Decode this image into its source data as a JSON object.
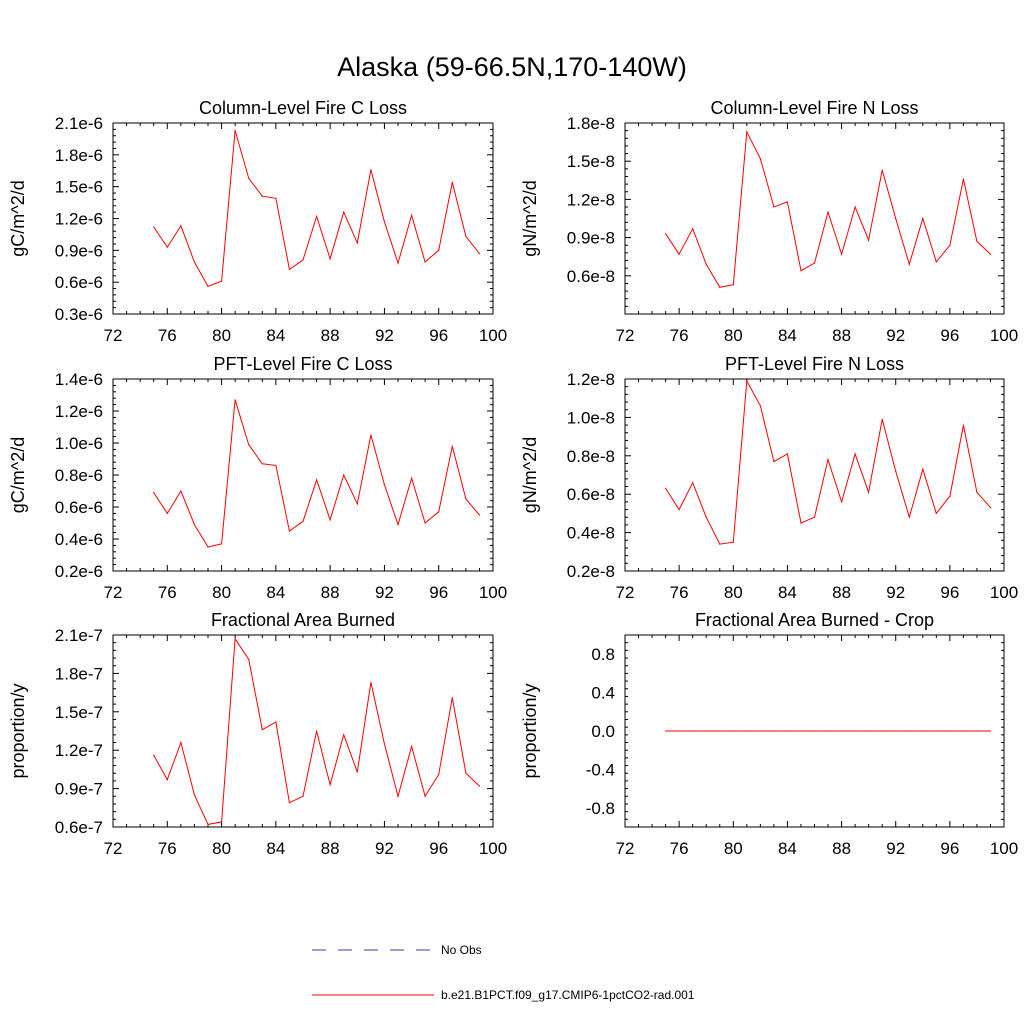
{
  "figure": {
    "title": "Alaska (59-66.5N,170-140W)"
  },
  "legend": {
    "items": [
      {
        "label": "No Obs",
        "color": "#3b3bb3",
        "style": "dashed"
      },
      {
        "label": "b.e21.B1PCT.f09_g17.CMIP6-1pctCO2-rad.001",
        "color": "#ff0000",
        "style": "solid"
      }
    ]
  },
  "chart_data": [
    {
      "type": "line",
      "title": "Column-Level Fire C Loss",
      "ylabel": "gC/m^2/d",
      "xlim": [
        72,
        100
      ],
      "ylim": [
        3e-07,
        2.1e-06
      ],
      "xticks": [
        72,
        76,
        80,
        84,
        88,
        92,
        96,
        100
      ],
      "xticklabels": [
        "72",
        "76",
        "80",
        "84",
        "88",
        "92",
        "96",
        "100"
      ],
      "yticks": [
        3e-07,
        6e-07,
        9e-07,
        1.2e-06,
        1.5e-06,
        1.8e-06,
        2.1e-06
      ],
      "yticklabels": [
        "0.3e-6",
        "0.6e-6",
        "0.9e-6",
        "1.2e-6",
        "1.5e-6",
        "1.8e-6",
        "2.1e-6"
      ],
      "x": [
        75,
        76,
        77,
        78,
        79,
        80,
        81,
        82,
        83,
        84,
        85,
        86,
        87,
        88,
        89,
        90,
        91,
        92,
        93,
        94,
        95,
        96,
        97,
        98,
        99
      ],
      "series": [
        {
          "name": "b.e21.B1PCT.f09_g17.CMIP6-1pctCO2-rad.001",
          "color": "#ff0000",
          "values": [
            1.12e-06,
            9.3e-07,
            1.13e-06,
            7.9e-07,
            5.6e-07,
            6.1e-07,
            2.03e-06,
            1.58e-06,
            1.41e-06,
            1.39e-06,
            7.2e-07,
            8.1e-07,
            1.22e-06,
            8.2e-07,
            1.26e-06,
            9.7e-07,
            1.66e-06,
            1.17e-06,
            7.8e-07,
            1.23e-06,
            7.9e-07,
            9e-07,
            1.54e-06,
            1.03e-06,
            8.7e-07
          ]
        }
      ]
    },
    {
      "type": "line",
      "title": "Column-Level Fire N Loss",
      "ylabel": "gN/m^2/d",
      "xlim": [
        72,
        100
      ],
      "ylim": [
        3e-09,
        1.8e-08
      ],
      "xticks": [
        72,
        76,
        80,
        84,
        88,
        92,
        96,
        100
      ],
      "xticklabels": [
        "72",
        "76",
        "80",
        "84",
        "88",
        "92",
        "96",
        "100"
      ],
      "yticks": [
        6e-09,
        9e-09,
        1.2e-08,
        1.5e-08,
        1.8e-08
      ],
      "yticklabels": [
        "0.6e-8",
        "0.9e-8",
        "1.2e-8",
        "1.5e-8",
        "1.8e-8"
      ],
      "x": [
        75,
        76,
        77,
        78,
        79,
        80,
        81,
        82,
        83,
        84,
        85,
        86,
        87,
        88,
        89,
        90,
        91,
        92,
        93,
        94,
        95,
        96,
        97,
        98,
        99
      ],
      "series": [
        {
          "name": "b.e21.B1PCT.f09_g17.CMIP6-1pctCO2-rad.001",
          "color": "#ff0000",
          "values": [
            9.3e-09,
            7.7e-09,
            9.7e-09,
            6.9e-09,
            5.1e-09,
            5.3e-09,
            1.73e-08,
            1.52e-08,
            1.14e-08,
            1.18e-08,
            6.4e-09,
            7e-09,
            1.1e-08,
            7.7e-09,
            1.14e-08,
            8.8e-09,
            1.43e-08,
            1.05e-08,
            6.9e-09,
            1.05e-08,
            7.1e-09,
            8.4e-09,
            1.36e-08,
            8.7e-09,
            7.7e-09
          ]
        }
      ]
    },
    {
      "type": "line",
      "title": "PFT-Level Fire C Loss",
      "ylabel": "gC/m^2/d",
      "xlim": [
        72,
        100
      ],
      "ylim": [
        2e-07,
        1.4e-06
      ],
      "xticks": [
        72,
        76,
        80,
        84,
        88,
        92,
        96,
        100
      ],
      "xticklabels": [
        "72",
        "76",
        "80",
        "84",
        "88",
        "92",
        "96",
        "100"
      ],
      "yticks": [
        2e-07,
        4e-07,
        6e-07,
        8e-07,
        1e-06,
        1.2e-06,
        1.4e-06
      ],
      "yticklabels": [
        "0.2e-6",
        "0.4e-6",
        "0.6e-6",
        "0.8e-6",
        "1.0e-6",
        "1.2e-6",
        "1.4e-6"
      ],
      "x": [
        75,
        76,
        77,
        78,
        79,
        80,
        81,
        82,
        83,
        84,
        85,
        86,
        87,
        88,
        89,
        90,
        91,
        92,
        93,
        94,
        95,
        96,
        97,
        98,
        99
      ],
      "series": [
        {
          "name": "b.e21.B1PCT.f09_g17.CMIP6-1pctCO2-rad.001",
          "color": "#ff0000",
          "values": [
            6.9e-07,
            5.6e-07,
            7e-07,
            4.9e-07,
            3.5e-07,
            3.7e-07,
            1.27e-06,
            9.9e-07,
            8.7e-07,
            8.6e-07,
            4.5e-07,
            5.1e-07,
            7.7e-07,
            5.2e-07,
            8e-07,
            6.2e-07,
            1.05e-06,
            7.4e-07,
            4.9e-07,
            7.8e-07,
            5e-07,
            5.7e-07,
            9.8e-07,
            6.5e-07,
            5.5e-07
          ]
        }
      ]
    },
    {
      "type": "line",
      "title": "PFT-Level Fire N Loss",
      "ylabel": "gN/m^2/d",
      "xlim": [
        72,
        100
      ],
      "ylim": [
        2e-09,
        1.2e-08
      ],
      "xticks": [
        72,
        76,
        80,
        84,
        88,
        92,
        96,
        100
      ],
      "xticklabels": [
        "72",
        "76",
        "80",
        "84",
        "88",
        "92",
        "96",
        "100"
      ],
      "yticks": [
        2e-09,
        4e-09,
        6e-09,
        8e-09,
        1e-08,
        1.2e-08
      ],
      "yticklabels": [
        "0.2e-8",
        "0.4e-8",
        "0.6e-8",
        "0.8e-8",
        "1.0e-8",
        "1.2e-8"
      ],
      "x": [
        75,
        76,
        77,
        78,
        79,
        80,
        81,
        82,
        83,
        84,
        85,
        86,
        87,
        88,
        89,
        90,
        91,
        92,
        93,
        94,
        95,
        96,
        97,
        98,
        99
      ],
      "series": [
        {
          "name": "b.e21.B1PCT.f09_g17.CMIP6-1pctCO2-rad.001",
          "color": "#ff0000",
          "values": [
            6.3e-09,
            5.2e-09,
            6.6e-09,
            4.8e-09,
            3.4e-09,
            3.5e-09,
            1.19e-08,
            1.06e-08,
            7.7e-09,
            8.1e-09,
            4.5e-09,
            4.8e-09,
            7.8e-09,
            5.6e-09,
            8.1e-09,
            6.1e-09,
            9.9e-09,
            7.2e-09,
            4.8e-09,
            7.3e-09,
            5e-09,
            5.9e-09,
            9.6e-09,
            6.1e-09,
            5.3e-09
          ]
        }
      ]
    },
    {
      "type": "line",
      "title": "Fractional Area Burned",
      "ylabel": "proportion/y",
      "xlim": [
        72,
        100
      ],
      "ylim": [
        6e-08,
        2.1e-07
      ],
      "xticks": [
        72,
        76,
        80,
        84,
        88,
        92,
        96,
        100
      ],
      "xticklabels": [
        "72",
        "76",
        "80",
        "84",
        "88",
        "92",
        "96",
        "100"
      ],
      "yticks": [
        6e-08,
        9e-08,
        1.2e-07,
        1.5e-07,
        1.8e-07,
        2.1e-07
      ],
      "yticklabels": [
        "0.6e-7",
        "0.9e-7",
        "1.2e-7",
        "1.5e-7",
        "1.8e-7",
        "2.1e-7"
      ],
      "x": [
        75,
        76,
        77,
        78,
        79,
        80,
        81,
        82,
        83,
        84,
        85,
        86,
        87,
        88,
        89,
        90,
        91,
        92,
        93,
        94,
        95,
        96,
        97,
        98,
        99
      ],
      "series": [
        {
          "name": "b.e21.B1PCT.f09_g17.CMIP6-1pctCO2-rad.001",
          "color": "#ff0000",
          "values": [
            1.16e-07,
            9.7e-08,
            1.26e-07,
            8.5e-08,
            6.2e-08,
            6.4e-08,
            2.07e-07,
            1.91e-07,
            1.36e-07,
            1.42e-07,
            7.9e-08,
            8.4e-08,
            1.35e-07,
            9.3e-08,
            1.32e-07,
            1.03e-07,
            1.73e-07,
            1.25e-07,
            8.4e-08,
            1.23e-07,
            8.4e-08,
            1.01e-07,
            1.61e-07,
            1.02e-07,
            9.2e-08
          ]
        }
      ]
    },
    {
      "type": "line",
      "title": "Fractional Area Burned - Crop",
      "ylabel": "proportion/y",
      "xlim": [
        72,
        100
      ],
      "ylim": [
        -1.0,
        1.0
      ],
      "xticks": [
        72,
        76,
        80,
        84,
        88,
        92,
        96,
        100
      ],
      "xticklabels": [
        "72",
        "76",
        "80",
        "84",
        "88",
        "92",
        "96",
        "100"
      ],
      "yticks": [
        -0.8,
        -0.4,
        0.0,
        0.4,
        0.8
      ],
      "yticklabels": [
        "-0.8",
        "-0.4",
        "0.0",
        "0.4",
        "0.8"
      ],
      "x": [
        75,
        76,
        77,
        78,
        79,
        80,
        81,
        82,
        83,
        84,
        85,
        86,
        87,
        88,
        89,
        90,
        91,
        92,
        93,
        94,
        95,
        96,
        97,
        98,
        99
      ],
      "series": [
        {
          "name": "b.e21.B1PCT.f09_g17.CMIP6-1pctCO2-rad.001",
          "color": "#ff0000",
          "values": [
            0,
            0,
            0,
            0,
            0,
            0,
            0,
            0,
            0,
            0,
            0,
            0,
            0,
            0,
            0,
            0,
            0,
            0,
            0,
            0,
            0,
            0,
            0,
            0,
            0
          ]
        }
      ]
    }
  ]
}
